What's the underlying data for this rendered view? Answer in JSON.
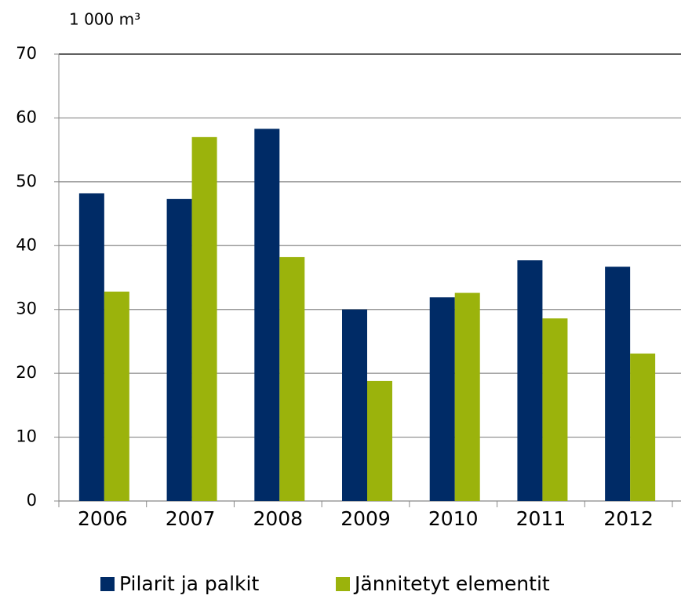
{
  "chart_data": {
    "type": "bar",
    "y_label": "1 000 m³",
    "categories": [
      "2006",
      "2007",
      "2008",
      "2009",
      "2010",
      "2011",
      "2012"
    ],
    "series": [
      {
        "name": "Pilarit ja palkit",
        "color": "#002b66",
        "values": [
          48.2,
          47.3,
          58.3,
          30.0,
          31.9,
          37.7,
          36.7
        ]
      },
      {
        "name": "Jännitetyt elementit",
        "color": "#9bb30c",
        "values": [
          32.8,
          57.0,
          38.2,
          18.8,
          32.6,
          28.6,
          23.1
        ]
      }
    ],
    "ylim": [
      0,
      70
    ],
    "yticks": [
      0,
      10,
      20,
      30,
      40,
      50,
      60,
      70
    ],
    "grid": true,
    "legend": "bottom"
  }
}
